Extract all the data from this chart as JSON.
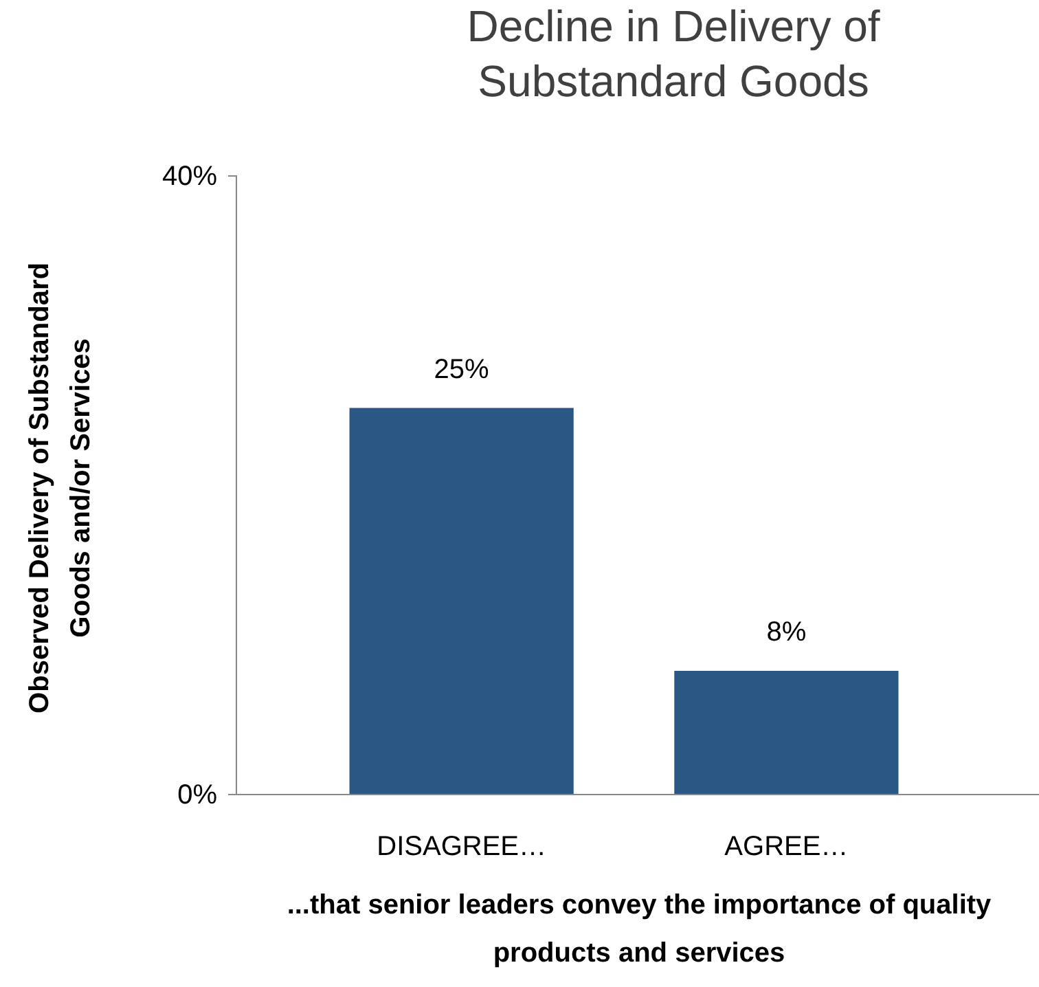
{
  "chart_data": {
    "type": "bar",
    "title": "Decline in Delivery of Substandard Goods",
    "xlabel": "...that senior leaders convey the importance of quality products and services",
    "ylabel": "Observed Delivery of Substandard Goods and/or Services",
    "categories": [
      "DISAGREE…",
      "AGREE…"
    ],
    "values": [
      25,
      8
    ],
    "value_labels": [
      "25%",
      "8%"
    ],
    "color": "#2a5784",
    "ylim": [
      0,
      40
    ],
    "yticks": [
      {
        "value": 0,
        "label": "0%"
      },
      {
        "value": 40,
        "label": "40%"
      }
    ]
  }
}
